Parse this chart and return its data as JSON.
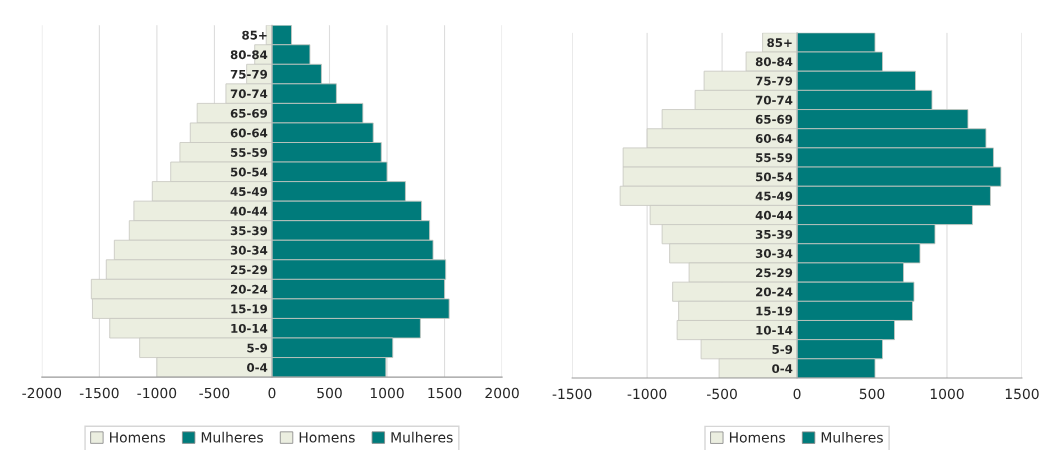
{
  "chart_data": [
    {
      "type": "bar",
      "orientation": "horizontal",
      "categories": [
        "85+",
        "80-84",
        "75-79",
        "70-74",
        "65-69",
        "60-64",
        "55-59",
        "50-54",
        "45-49",
        "40-44",
        "35-39",
        "30-34",
        "25-29",
        "20-24",
        "15-19",
        "10-14",
        "5-9",
        "0-4"
      ],
      "series": [
        {
          "name": "Homens",
          "color": "#ebeee0",
          "values": [
            -50,
            -150,
            -220,
            -400,
            -650,
            -710,
            -800,
            -880,
            -1040,
            -1200,
            -1240,
            -1370,
            -1440,
            -1570,
            -1560,
            -1410,
            -1150,
            -1000
          ]
        },
        {
          "name": "Mulheres",
          "color": "#007b7b",
          "values": [
            170,
            330,
            430,
            560,
            790,
            880,
            950,
            1000,
            1160,
            1300,
            1370,
            1400,
            1510,
            1500,
            1540,
            1290,
            1050,
            990
          ]
        },
        {
          "name": "Homens",
          "color": "#ebeee0",
          "values": [
            null,
            null,
            null,
            null,
            null,
            null,
            null,
            null,
            null,
            null,
            null,
            null,
            null,
            null,
            null,
            null,
            null,
            null
          ]
        },
        {
          "name": "Mulheres",
          "color": "#007b7b",
          "values": [
            null,
            null,
            null,
            null,
            null,
            null,
            null,
            null,
            null,
            null,
            null,
            null,
            null,
            null,
            null,
            null,
            null,
            null
          ]
        }
      ],
      "stacked": true,
      "xlim": [
        -2000,
        2000
      ],
      "xticks": [
        -2000,
        -1500,
        -1000,
        -500,
        0,
        500,
        1000,
        1500,
        2000
      ],
      "grid": "x",
      "legend": "bottom"
    },
    {
      "type": "bar",
      "orientation": "horizontal",
      "categories": [
        "85+",
        "80-84",
        "75-79",
        "70-74",
        "65-69",
        "60-64",
        "55-59",
        "50-54",
        "45-49",
        "40-44",
        "35-39",
        "30-34",
        "25-29",
        "20-24",
        "15-19",
        "10-14",
        "5-9",
        "0-4"
      ],
      "series": [
        {
          "name": "Homens",
          "color": "#ebeee0",
          "values": [
            -230,
            -340,
            -620,
            -680,
            -900,
            -1000,
            -1160,
            -1160,
            -1180,
            -980,
            -900,
            -850,
            -720,
            -830,
            -790,
            -800,
            -640,
            -520
          ]
        },
        {
          "name": "Mulheres",
          "color": "#007b7b",
          "values": [
            520,
            570,
            790,
            900,
            1140,
            1260,
            1310,
            1360,
            1290,
            1170,
            920,
            820,
            710,
            780,
            770,
            650,
            570,
            520
          ]
        }
      ],
      "stacked": true,
      "xlim": [
        -1500,
        1500
      ],
      "xticks": [
        -1500,
        -1000,
        -500,
        0,
        500,
        1000,
        1500
      ],
      "grid": "x",
      "legend": "bottom"
    }
  ]
}
